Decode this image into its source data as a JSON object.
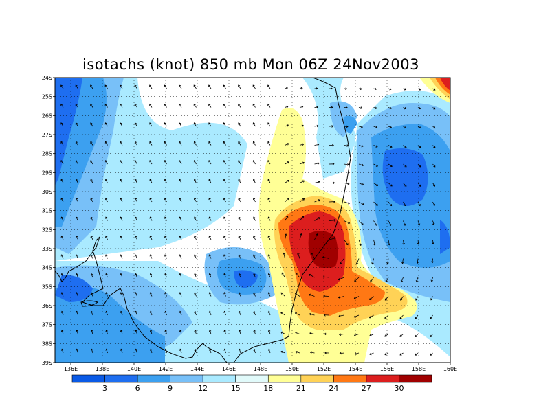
{
  "title": "isotachs (knot) 850 mb Mon 06Z 24Nov2003",
  "latitude_labels": [
    "24S",
    "25S",
    "26S",
    "27S",
    "28S",
    "29S",
    "30S",
    "31S",
    "32S",
    "33S",
    "34S",
    "35S",
    "36S",
    "37S",
    "38S",
    "39S"
  ],
  "longitude_labels": [
    "136E",
    "138E",
    "140E",
    "142E",
    "144E",
    "146E",
    "148E",
    "150E",
    "152E",
    "154E",
    "156E",
    "158E",
    "160E"
  ],
  "colorbar": {
    "levels": [
      "3",
      "6",
      "9",
      "12",
      "15",
      "18",
      "21",
      "24",
      "27",
      "30"
    ],
    "colors": [
      "#0a5ae6",
      "#1e6ef0",
      "#3ca0f0",
      "#78c0f8",
      "#aaeaff",
      "#e1fafa",
      "#ffff96",
      "#ffd256",
      "#ff7814",
      "#dc1e1e",
      "#a00000"
    ]
  },
  "map": {
    "region": "Eastern Australia and Tasman Sea",
    "lat_range": [
      "24S",
      "39S"
    ],
    "lon_range": [
      "135E",
      "160E"
    ],
    "fill_colors": {
      "dark_blue": "#1e6ef0",
      "blue": "#3ca0f0",
      "light_blue": "#78c0f8",
      "pale_blue": "#aaeaff",
      "yellow": "#ffff96",
      "orange": "#ffd256",
      "red_orange": "#ff7814",
      "red": "#dc1e1e",
      "dark_red": "#a00000"
    },
    "overlays": [
      "coastline",
      "wind-vectors",
      "dashed-gridlines"
    ]
  }
}
